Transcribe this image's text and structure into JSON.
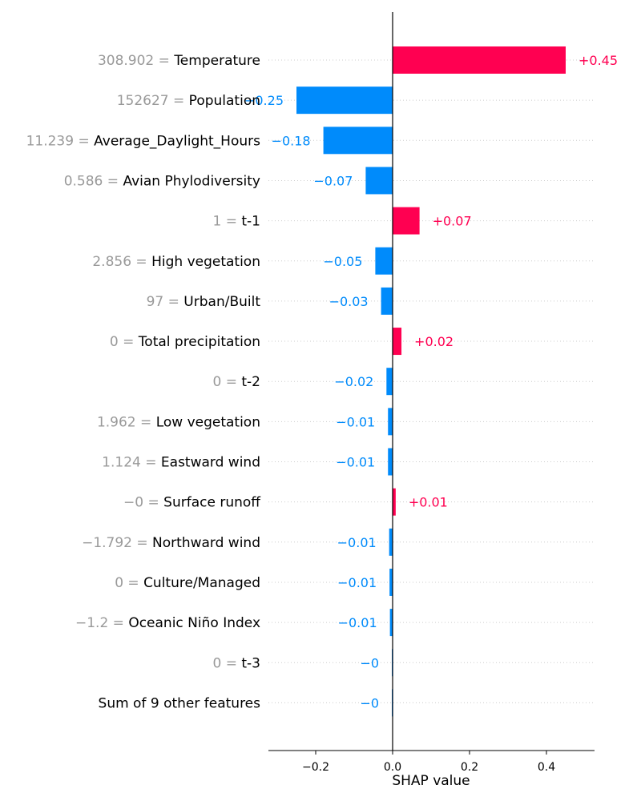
{
  "chart_data": {
    "type": "bar",
    "title": "",
    "xlabel": "SHAP value",
    "ylabel": "",
    "xlim": [
      -0.3,
      0.52
    ],
    "grid": "dotted horizontal rows",
    "x_ticks": [
      {
        "value": -0.2,
        "label": "−0.2"
      },
      {
        "value": 0.0,
        "label": "0.0"
      },
      {
        "value": 0.2,
        "label": "0.2"
      },
      {
        "value": 0.4,
        "label": "0.4"
      }
    ],
    "colors": {
      "positive": "#ff0051",
      "negative": "#008bfb"
    },
    "rows": [
      {
        "feature_value": "308.902 =",
        "feature": "Temperature",
        "value": 0.45,
        "label": "+0.45"
      },
      {
        "feature_value": "152627 =",
        "feature": "Population",
        "value": -0.25,
        "label": "−0.25"
      },
      {
        "feature_value": "11.239 =",
        "feature": "Average_Daylight_Hours",
        "value": -0.18,
        "label": "−0.18"
      },
      {
        "feature_value": "0.586 =",
        "feature": "Avian Phylodiversity",
        "value": -0.07,
        "label": "−0.07"
      },
      {
        "feature_value": "1 =",
        "feature": "t-1",
        "value": 0.07,
        "label": "+0.07"
      },
      {
        "feature_value": "2.856 =",
        "feature": "High vegetation",
        "value": -0.045,
        "label": "−0.05"
      },
      {
        "feature_value": "97 =",
        "feature": "Urban/Built",
        "value": -0.03,
        "label": "−0.03"
      },
      {
        "feature_value": "0 =",
        "feature": "Total precipitation",
        "value": 0.023,
        "label": "+0.02"
      },
      {
        "feature_value": "0 =",
        "feature": "t-2",
        "value": -0.016,
        "label": "−0.02"
      },
      {
        "feature_value": "1.962 =",
        "feature": "Low vegetation",
        "value": -0.012,
        "label": "−0.01"
      },
      {
        "feature_value": "1.124 =",
        "feature": "Eastward wind",
        "value": -0.012,
        "label": "−0.01"
      },
      {
        "feature_value": "−0 =",
        "feature": "Surface runoff",
        "value": 0.008,
        "label": "+0.01"
      },
      {
        "feature_value": "−1.792 =",
        "feature": "Northward wind",
        "value": -0.009,
        "label": "−0.01"
      },
      {
        "feature_value": "0 =",
        "feature": "Culture/Managed",
        "value": -0.008,
        "label": "−0.01"
      },
      {
        "feature_value": "−1.2 =",
        "feature": "Oceanic Niño Index",
        "value": -0.007,
        "label": "−0.01"
      },
      {
        "feature_value": "0 =",
        "feature": "t-3",
        "value": -0.002,
        "label": "−0"
      },
      {
        "feature_value": "",
        "feature": "Sum of 9 other features",
        "value": -0.002,
        "label": "−0"
      }
    ]
  }
}
